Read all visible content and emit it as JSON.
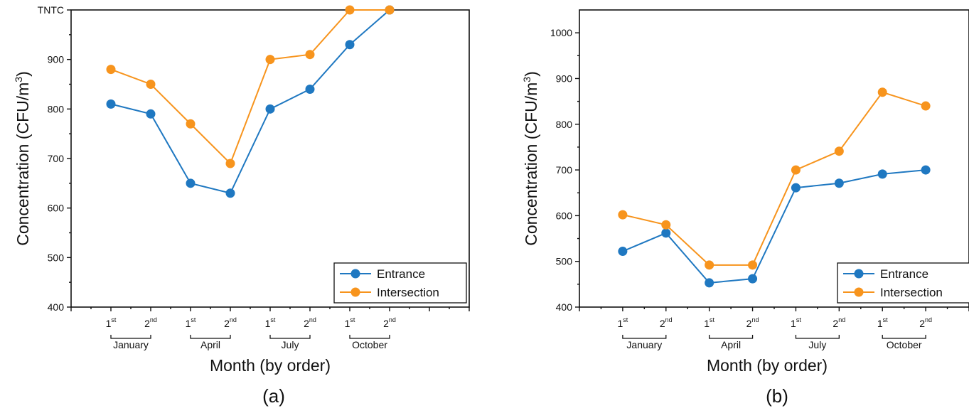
{
  "colors": {
    "entrance": "#1f78c1",
    "intersection": "#f7941d",
    "axis": "#111111"
  },
  "chart_data": [
    {
      "type": "line",
      "panel_label": "(a)",
      "xlabel": "Month (by order)",
      "ylabel": "Concentration (CFU/m³)",
      "ylabel_base": "Concentration (CFU/m",
      "ylabel_sup": "3",
      "ylabel_close": ")",
      "ylim": [
        400,
        1000
      ],
      "yticks": [
        400,
        500,
        600,
        700,
        800,
        900,
        1000
      ],
      "ytick_labels": [
        "400",
        "500",
        "600",
        "700",
        "800",
        "900",
        "TNTC"
      ],
      "xlim": [
        0,
        10
      ],
      "x": [
        1,
        2,
        3,
        4,
        5,
        6,
        7,
        8
      ],
      "x_tick_labels": [
        {
          "base": "1",
          "sup": "st"
        },
        {
          "base": "2",
          "sup": "nd"
        },
        {
          "base": "1",
          "sup": "st"
        },
        {
          "base": "2",
          "sup": "nd"
        },
        {
          "base": "1",
          "sup": "st"
        },
        {
          "base": "2",
          "sup": "nd"
        },
        {
          "base": "1",
          "sup": "st"
        },
        {
          "base": "2",
          "sup": "nd"
        }
      ],
      "groups": [
        "January",
        "April",
        "July",
        "October"
      ],
      "series": [
        {
          "name": "Entrance",
          "values": [
            810,
            790,
            650,
            630,
            800,
            840,
            930,
            1000
          ]
        },
        {
          "name": "Intersection",
          "values": [
            880,
            850,
            770,
            690,
            900,
            910,
            1000,
            1000
          ]
        }
      ],
      "legend": "bottom-right",
      "grid": false
    },
    {
      "type": "line",
      "panel_label": "(b)",
      "xlabel": "Month (by order)",
      "ylabel": "Concentration (CFU/m³)",
      "ylabel_base": "Concentration (CFU/m",
      "ylabel_sup": "3",
      "ylabel_close": ")",
      "ylim": [
        400,
        1050
      ],
      "yticks": [
        400,
        500,
        600,
        700,
        800,
        900,
        1000
      ],
      "ytick_labels": [
        "400",
        "500",
        "600",
        "700",
        "800",
        "900",
        "1000"
      ],
      "xlim": [
        0,
        9
      ],
      "x": [
        1,
        2,
        3,
        4,
        5,
        6,
        7,
        8
      ],
      "x_tick_labels": [
        {
          "base": "1",
          "sup": "st"
        },
        {
          "base": "2",
          "sup": "nd"
        },
        {
          "base": "1",
          "sup": "st"
        },
        {
          "base": "2",
          "sup": "nd"
        },
        {
          "base": "1",
          "sup": "st"
        },
        {
          "base": "2",
          "sup": "nd"
        },
        {
          "base": "1",
          "sup": "st"
        },
        {
          "base": "2",
          "sup": "nd"
        }
      ],
      "groups": [
        "January",
        "April",
        "July",
        "October"
      ],
      "series": [
        {
          "name": "Entrance",
          "values": [
            522,
            562,
            453,
            462,
            661,
            671,
            691,
            700
          ]
        },
        {
          "name": "Intersection",
          "values": [
            602,
            580,
            492,
            492,
            700,
            741,
            870,
            840
          ]
        }
      ],
      "legend": "bottom-right",
      "grid": false
    }
  ]
}
